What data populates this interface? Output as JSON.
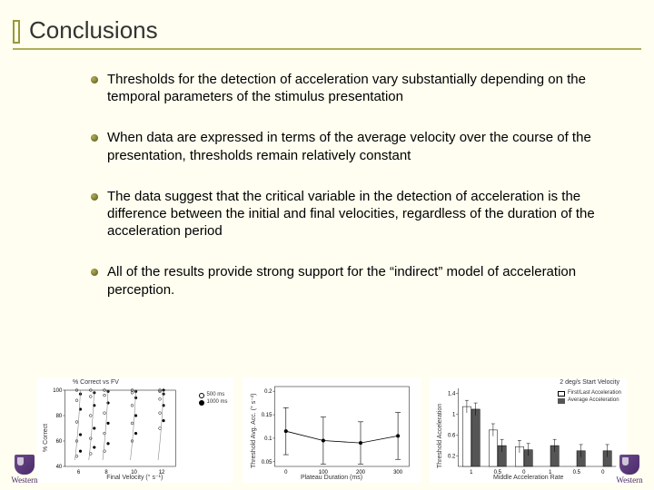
{
  "title": "Conclusions",
  "bullets": [
    "Thresholds for the detection of acceleration vary substantially depending on the temporal parameters of the stimulus presentation",
    "When data are expressed in terms of the average velocity over the course of the presentation, thresholds remain relatively constant",
    "The data suggest that the critical variable in the detection of acceleration is the difference between the initial and final velocities, regardless of the duration of the acceleration period",
    "All of the results provide strong support for the “indirect” model of acceleration perception."
  ],
  "logo_text": "Western",
  "chart_left": {
    "type": "scatter",
    "title": "% Correct vs FV",
    "ylabel": "% Correct",
    "xlabel": "Final Velocity (° s⁻¹)",
    "yticks": [
      40,
      60,
      80,
      100
    ],
    "xticks": [
      6,
      8,
      10,
      12
    ],
    "legend": [
      "500 ms",
      "1000 ms"
    ],
    "columns": [
      {
        "x": 6,
        "pts": [
          48,
          52,
          60,
          65,
          75,
          85,
          92,
          97,
          100
        ]
      },
      {
        "x": 7,
        "pts": [
          50,
          55,
          62,
          70,
          80,
          88,
          95,
          98,
          100
        ]
      },
      {
        "x": 8,
        "pts": [
          52,
          58,
          66,
          74,
          82,
          90,
          96,
          99,
          100
        ]
      },
      {
        "x": 10,
        "pts": [
          60,
          66,
          74,
          80,
          88,
          94,
          98,
          99,
          100
        ]
      },
      {
        "x": 12,
        "pts": [
          70,
          76,
          82,
          88,
          93,
          97,
          99,
          100,
          100
        ]
      }
    ],
    "marker_open": "#000000",
    "marker_fill": "#000000",
    "line_color": "#888888",
    "background_color": "#ffffff"
  },
  "chart_mid": {
    "type": "line",
    "ylabel": "Threshold Avg. Acc. (° s⁻²)",
    "xlabel": "Plateau Duration (ms)",
    "yticks": [
      0.05,
      0.1,
      0.15,
      0.2
    ],
    "xticks": [
      0,
      100,
      200,
      300
    ],
    "points": [
      {
        "x": 0,
        "y": 0.115,
        "err": 0.05
      },
      {
        "x": 100,
        "y": 0.095,
        "err": 0.05
      },
      {
        "x": 200,
        "y": 0.09,
        "err": 0.045
      },
      {
        "x": 300,
        "y": 0.105,
        "err": 0.05
      }
    ],
    "line_color": "#000000",
    "marker_color": "#000000",
    "background_color": "#ffffff"
  },
  "chart_right": {
    "type": "bar",
    "title": "2 deg/s Start Velocity",
    "ylabel": "Threshold Acceleration",
    "xlabel": "Middle Acceleration Rate",
    "yticks": [
      0.2,
      0.6,
      1.0,
      1.4
    ],
    "groups": [
      "1",
      "0.5",
      "0",
      "1",
      "0.5",
      "0"
    ],
    "series": [
      {
        "label": "First/Last Acceleration",
        "color": "#ffffff",
        "border": "#000000",
        "values": [
          1.15,
          0.7,
          0.38,
          null,
          null,
          null
        ]
      },
      {
        "label": "Average Acceleration",
        "color": "#555555",
        "border": "#000000",
        "values": [
          1.1,
          0.4,
          0.32,
          0.4,
          0.3,
          0.3
        ]
      }
    ],
    "err": 0.12,
    "background_color": "#ffffff"
  },
  "colors": {
    "accent": "#9a9838",
    "rule": "#b0ae5a",
    "slide_bg": "#fffef0",
    "logo": "#4a2a6a"
  }
}
